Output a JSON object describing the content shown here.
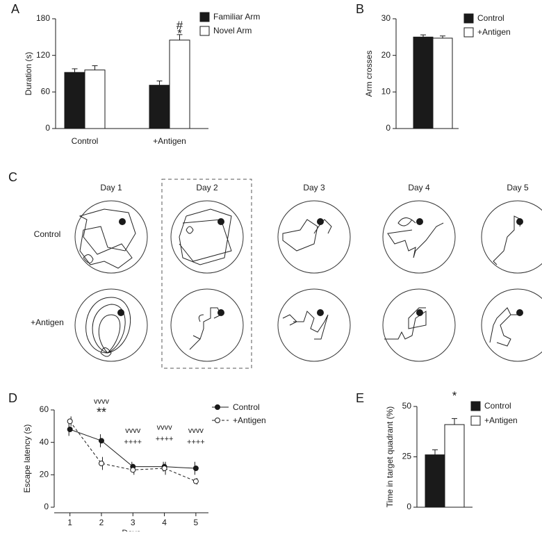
{
  "chart_data": [
    {
      "type": "bar",
      "label": "A",
      "ylabel": "Duration (s)",
      "categories": [
        "Control",
        "+Antigen"
      ],
      "series": [
        {
          "name": "Familiar Arm",
          "color": "#1a1a1a",
          "values": [
            92,
            71
          ],
          "errors": [
            6,
            7
          ]
        },
        {
          "name": "Novel Arm",
          "color": "#ffffff",
          "values": [
            96,
            145
          ],
          "errors": [
            7,
            9
          ]
        }
      ],
      "ylim": [
        0,
        180
      ],
      "yticks": [
        0,
        60,
        120,
        180
      ],
      "annotations": [
        {
          "text": "#",
          "x": "+Antigen",
          "series": "Novel Arm",
          "y": 168
        },
        {
          "text": "*",
          "x": "+Antigen",
          "series": "Novel Arm",
          "y": 155
        }
      ]
    },
    {
      "type": "bar",
      "label": "B",
      "ylabel": "Arm crosses",
      "categories": [
        null
      ],
      "series": [
        {
          "name": "Control",
          "color": "#1a1a1a",
          "values": [
            25
          ],
          "errors": [
            0.6
          ]
        },
        {
          "name": "+Antigen",
          "color": "#ffffff",
          "values": [
            24.7
          ],
          "errors": [
            0.6
          ]
        }
      ],
      "ylim": [
        0,
        30
      ],
      "yticks": [
        0,
        10,
        20,
        30
      ]
    },
    {
      "type": "trajectory",
      "label": "C",
      "columns": [
        "Day 1",
        "Day 2",
        "Day 3",
        "Day 4",
        "Day 5"
      ],
      "rows": [
        "Control",
        "+Antigen"
      ]
    },
    {
      "type": "line",
      "label": "D",
      "xlabel": "Days",
      "ylabel": "Escape latency (s)",
      "x": [
        1,
        2,
        3,
        4,
        5
      ],
      "series": [
        {
          "name": "Control",
          "color": "#1a1a1a",
          "values": [
            48,
            41,
            25,
            25,
            24
          ],
          "errors": [
            4,
            4,
            3,
            3,
            4
          ]
        },
        {
          "name": "+Antigen",
          "color": "#1a1a1a",
          "dashed": true,
          "values": [
            53,
            27,
            23,
            24,
            16
          ],
          "errors": [
            3,
            4,
            3,
            4,
            2
          ]
        }
      ],
      "xlim": [
        0.5,
        5.4
      ],
      "xticks": [
        1,
        2,
        3,
        4,
        5
      ],
      "ylim": [
        0,
        60
      ],
      "yticks": [
        0,
        20,
        40,
        60
      ],
      "annotations": [
        {
          "text": "vvvv",
          "x": 2,
          "y": 65
        },
        {
          "text": "**",
          "x": 2,
          "y": 58
        },
        {
          "text": "vvvv",
          "x": 3,
          "y": 47
        },
        {
          "text": "++++",
          "x": 3,
          "y": 40
        },
        {
          "text": "vvvv",
          "x": 4,
          "y": 49
        },
        {
          "text": "++++",
          "x": 4,
          "y": 42
        },
        {
          "text": "vvvv",
          "x": 5,
          "y": 47
        },
        {
          "text": "++++",
          "x": 5,
          "y": 40
        }
      ]
    },
    {
      "type": "bar",
      "label": "E",
      "ylabel": "Time in target quadrant (%)",
      "categories": [
        null
      ],
      "series": [
        {
          "name": "Control",
          "color": "#1a1a1a",
          "values": [
            26
          ],
          "errors": [
            2.5
          ]
        },
        {
          "name": "+Antigen",
          "color": "#ffffff",
          "values": [
            41
          ],
          "errors": [
            3
          ]
        }
      ],
      "ylim": [
        0,
        50
      ],
      "yticks": [
        0,
        25,
        50
      ],
      "annotations": [
        {
          "text": "*",
          "series": "+Antigen",
          "y": 55
        }
      ]
    }
  ]
}
